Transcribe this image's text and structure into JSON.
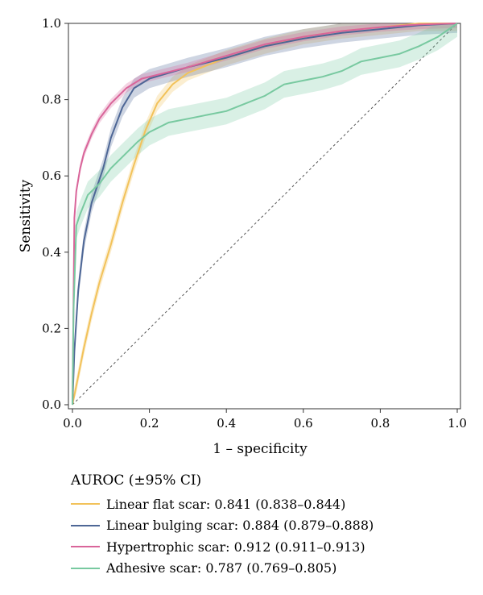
{
  "chart_data": {
    "type": "line",
    "xlabel": "1 – specificity",
    "ylabel": "Sensitivity",
    "xlim": [
      0,
      1
    ],
    "ylim": [
      0,
      1
    ],
    "x_ticks": [
      "0.0",
      "0.2",
      "0.4",
      "0.6",
      "0.8",
      "1.0"
    ],
    "y_ticks": [
      "0.0",
      "0.2",
      "0.4",
      "0.6",
      "0.8",
      "1.0"
    ],
    "grid": false,
    "legend_title": "AUROC (±95% CI)",
    "legend_position": "below",
    "diagonal_reference": true,
    "series": [
      {
        "name": "Linear flat scar: 0.841 (0.838–0.844)",
        "color": "#f2c25a",
        "band_width": 0.02,
        "points": [
          [
            0,
            0
          ],
          [
            0.01,
            0.05
          ],
          [
            0.03,
            0.15
          ],
          [
            0.05,
            0.24
          ],
          [
            0.07,
            0.32
          ],
          [
            0.1,
            0.42
          ],
          [
            0.13,
            0.53
          ],
          [
            0.16,
            0.63
          ],
          [
            0.19,
            0.72
          ],
          [
            0.22,
            0.79
          ],
          [
            0.26,
            0.84
          ],
          [
            0.3,
            0.87
          ],
          [
            0.35,
            0.89
          ],
          [
            0.4,
            0.91
          ],
          [
            0.5,
            0.94
          ],
          [
            0.6,
            0.965
          ],
          [
            0.7,
            0.98
          ],
          [
            0.8,
            0.99
          ],
          [
            0.9,
            1.0
          ],
          [
            1,
            1
          ]
        ]
      },
      {
        "name": "Linear bulging scar: 0.884 (0.879–0.888)",
        "color": "#4e6796",
        "band_width": 0.025,
        "points": [
          [
            0,
            0
          ],
          [
            0.005,
            0.14
          ],
          [
            0.015,
            0.3
          ],
          [
            0.03,
            0.43
          ],
          [
            0.05,
            0.53
          ],
          [
            0.08,
            0.62
          ],
          [
            0.1,
            0.7
          ],
          [
            0.13,
            0.78
          ],
          [
            0.16,
            0.83
          ],
          [
            0.2,
            0.855
          ],
          [
            0.25,
            0.87
          ],
          [
            0.3,
            0.885
          ],
          [
            0.4,
            0.91
          ],
          [
            0.5,
            0.94
          ],
          [
            0.6,
            0.96
          ],
          [
            0.7,
            0.975
          ],
          [
            0.8,
            0.985
          ],
          [
            0.9,
            0.995
          ],
          [
            1,
            1
          ]
        ]
      },
      {
        "name": "Hypertrophic scar: 0.912 (0.911–0.913)",
        "color": "#d9659a",
        "band_width": 0.012,
        "points": [
          [
            0,
            0
          ],
          [
            0.005,
            0.49
          ],
          [
            0.01,
            0.56
          ],
          [
            0.02,
            0.62
          ],
          [
            0.03,
            0.66
          ],
          [
            0.05,
            0.71
          ],
          [
            0.07,
            0.75
          ],
          [
            0.1,
            0.79
          ],
          [
            0.14,
            0.83
          ],
          [
            0.18,
            0.855
          ],
          [
            0.22,
            0.865
          ],
          [
            0.3,
            0.885
          ],
          [
            0.4,
            0.915
          ],
          [
            0.5,
            0.945
          ],
          [
            0.6,
            0.965
          ],
          [
            0.7,
            0.98
          ],
          [
            0.8,
            0.99
          ],
          [
            0.9,
            0.997
          ],
          [
            1,
            1
          ]
        ]
      },
      {
        "name": "Adhesive scar: 0.787 (0.769–0.805)",
        "color": "#78c9a0",
        "band_width": 0.035,
        "points": [
          [
            0,
            0
          ],
          [
            0.003,
            0.25
          ],
          [
            0.01,
            0.47
          ],
          [
            0.02,
            0.5
          ],
          [
            0.04,
            0.55
          ],
          [
            0.07,
            0.58
          ],
          [
            0.1,
            0.62
          ],
          [
            0.13,
            0.65
          ],
          [
            0.17,
            0.69
          ],
          [
            0.2,
            0.715
          ],
          [
            0.25,
            0.74
          ],
          [
            0.3,
            0.75
          ],
          [
            0.35,
            0.76
          ],
          [
            0.4,
            0.77
          ],
          [
            0.45,
            0.79
          ],
          [
            0.5,
            0.81
          ],
          [
            0.55,
            0.84
          ],
          [
            0.6,
            0.85
          ],
          [
            0.65,
            0.86
          ],
          [
            0.7,
            0.875
          ],
          [
            0.75,
            0.9
          ],
          [
            0.8,
            0.91
          ],
          [
            0.85,
            0.92
          ],
          [
            0.9,
            0.94
          ],
          [
            0.95,
            0.965
          ],
          [
            1,
            1
          ]
        ]
      }
    ]
  }
}
